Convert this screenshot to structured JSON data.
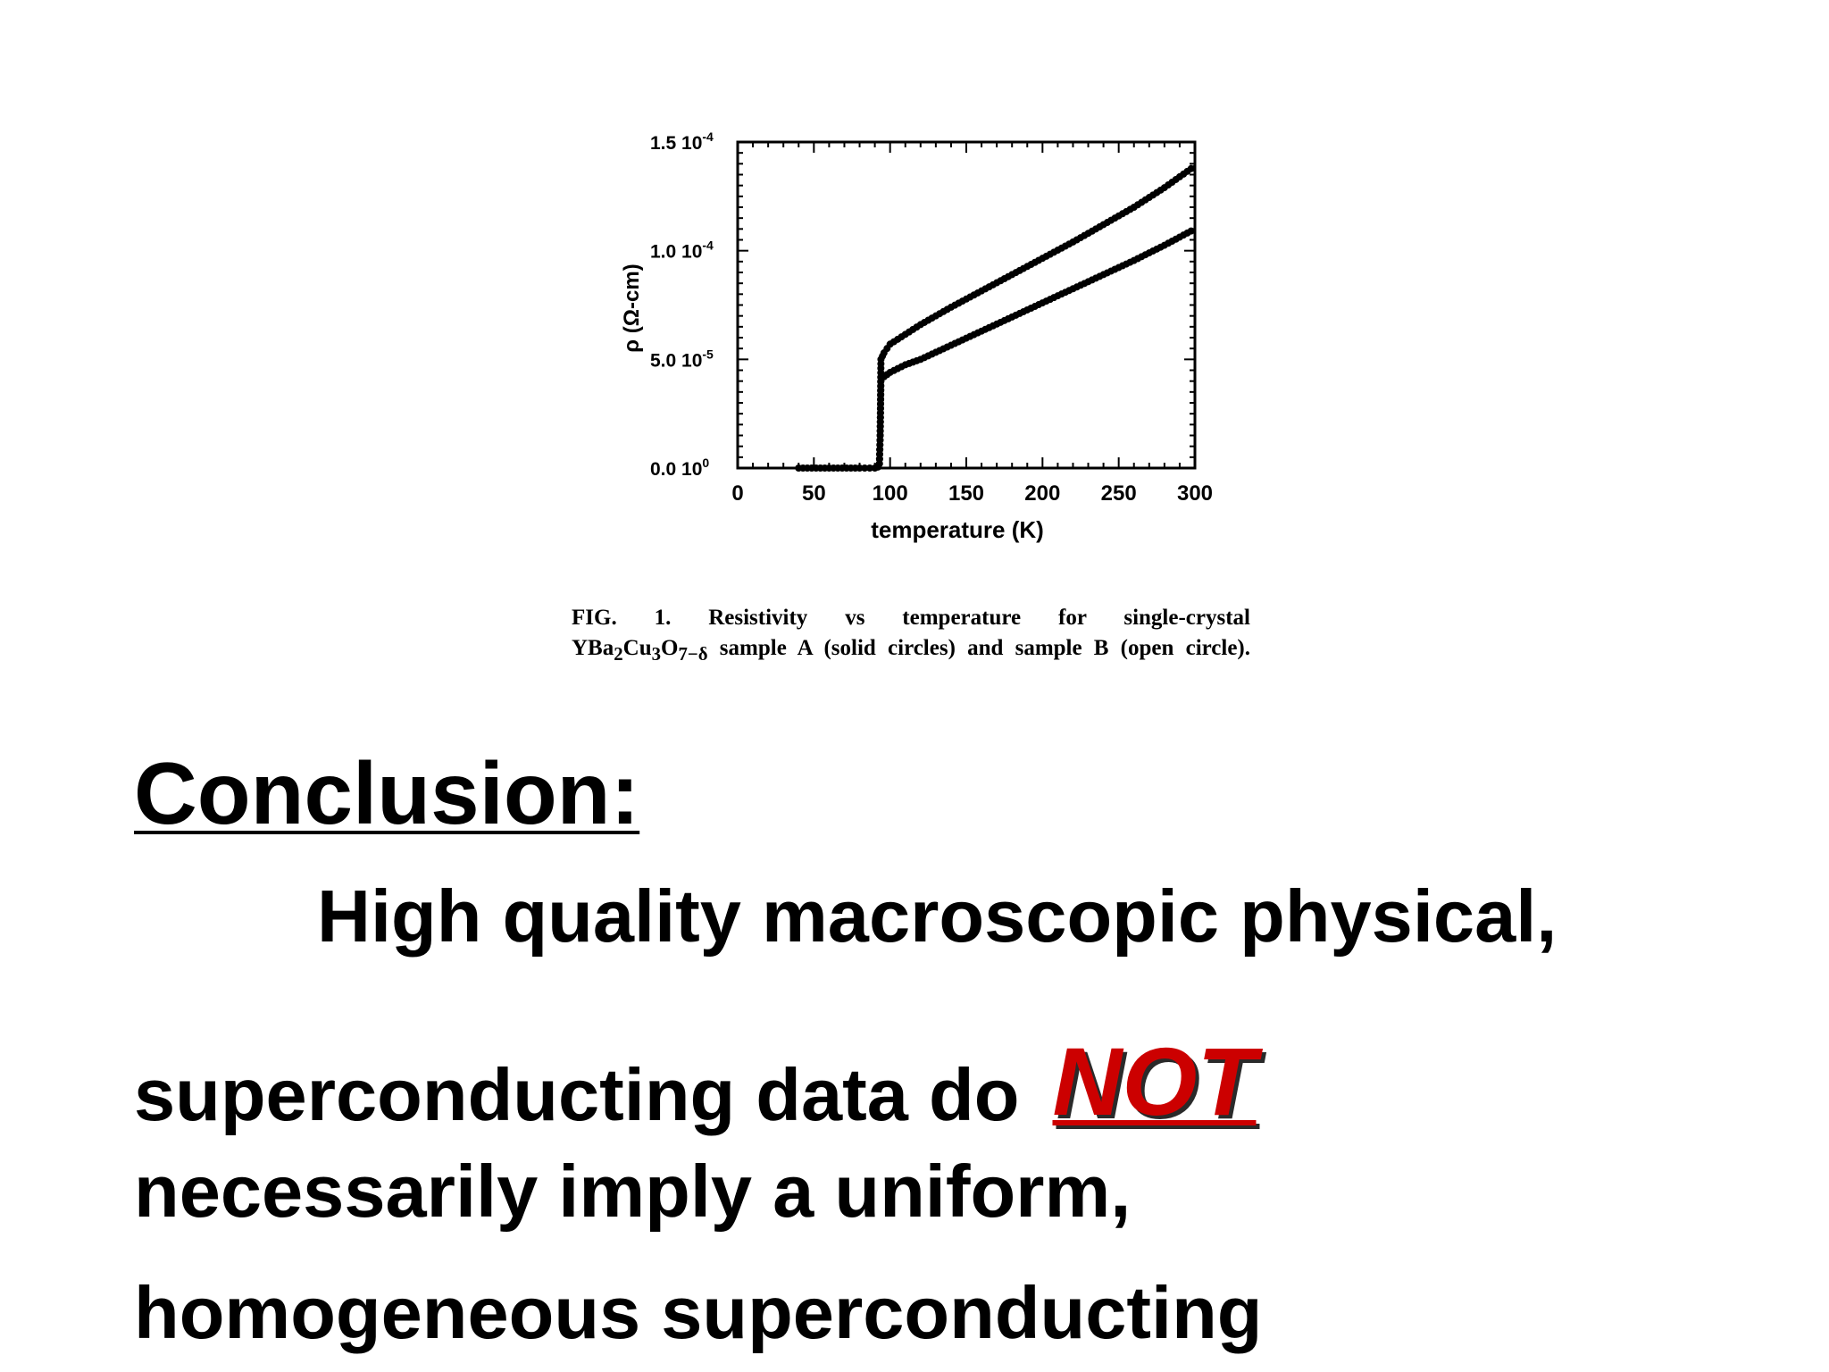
{
  "chart_data": {
    "type": "scatter",
    "ylabel": "ρ (Ω-cm)",
    "xlabel": "temperature (K)",
    "xlim": [
      0,
      300
    ],
    "ylim": [
      0,
      0.00015
    ],
    "x_ticks": [
      0,
      50,
      100,
      150,
      200,
      250,
      300
    ],
    "y_ticks": [
      {
        "value": 0,
        "label": "0.0 10",
        "exp": "0"
      },
      {
        "value": 5e-05,
        "label": "5.0 10",
        "exp": "-5"
      },
      {
        "value": 0.0001,
        "label": "1.0 10",
        "exp": "-4"
      },
      {
        "value": 0.00015,
        "label": "1.5 10",
        "exp": "-4"
      }
    ],
    "grid": false,
    "series": [
      {
        "name": "sample A",
        "marker": "solid circle",
        "x": [
          40,
          60,
          80,
          90,
          92,
          93,
          93.5,
          94,
          96,
          100,
          110,
          120,
          140,
          160,
          180,
          200,
          220,
          240,
          260,
          280,
          300
        ],
        "y": [
          0,
          0,
          0,
          0,
          5e-07,
          2e-06,
          1.5e-05,
          5e-05,
          5.3e-05,
          5.7e-05,
          6.15e-05,
          6.6e-05,
          7.4e-05,
          8.15e-05,
          8.9e-05,
          9.65e-05,
          0.000104,
          0.000112,
          0.00012,
          0.000129,
          0.000139
        ]
      },
      {
        "name": "sample B",
        "marker": "open circle",
        "x": [
          92,
          93,
          93.5,
          94,
          96,
          100,
          110,
          120,
          140,
          160,
          180,
          200,
          220,
          240,
          260,
          280,
          300
        ],
        "y": [
          5e-07,
          2e-06,
          1.5e-05,
          4e-05,
          4.2e-05,
          4.4e-05,
          4.75e-05,
          5e-05,
          5.65e-05,
          6.3e-05,
          6.95e-05,
          7.6e-05,
          8.25e-05,
          8.9e-05,
          9.55e-05,
          0.0001025,
          0.00011
        ]
      }
    ]
  },
  "caption": {
    "line1": "FIG. 1. Resistivity vs temperature for single-crystal",
    "line2_formula_prefix": "YBa",
    "line2_sub1": "2",
    "line2_cu": "Cu",
    "line2_sub2": "3",
    "line2_o": "O",
    "line2_sub3": "7−δ",
    "line2_rest": " sample A (solid circles) and sample B (open circle)."
  },
  "conclusion": {
    "heading": "Conclusion:",
    "line1": "High quality macroscopic physical,",
    "line2_prefix": "superconducting data do ",
    "emphasis": "NOT",
    "line3": "necessarily imply a uniform,",
    "line4": "homogeneous superconducting"
  },
  "colors": {
    "emphasis": "#cc0000",
    "text": "#000000"
  }
}
